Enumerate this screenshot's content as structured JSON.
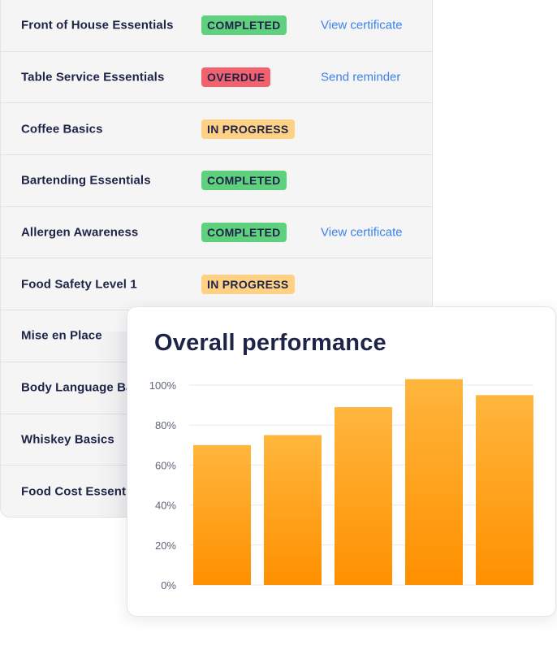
{
  "courses": [
    {
      "name": "Front of House Essentials",
      "status": "COMPLETED",
      "status_type": "completed",
      "action": "View certificate"
    },
    {
      "name": "Table Service Essentials",
      "status": "OVERDUE",
      "status_type": "overdue",
      "action": "Send reminder"
    },
    {
      "name": "Coffee Basics",
      "status": "IN PROGRESS",
      "status_type": "in-progress",
      "action": ""
    },
    {
      "name": "Bartending Essentials",
      "status": "COMPLETED",
      "status_type": "completed",
      "action": ""
    },
    {
      "name": "Allergen Awareness",
      "status": "COMPLETED",
      "status_type": "completed",
      "action": "View certificate"
    },
    {
      "name": "Food Safety Level 1",
      "status": "IN PROGRESS",
      "status_type": "in-progress",
      "action": ""
    },
    {
      "name": "Mise en Place",
      "status": "",
      "status_type": "",
      "action": ""
    },
    {
      "name": "Body Language Ba",
      "status": "",
      "status_type": "",
      "action": ""
    },
    {
      "name": "Whiskey Basics",
      "status": "",
      "status_type": "",
      "action": ""
    },
    {
      "name": "Food Cost Essenti",
      "status": "",
      "status_type": "",
      "action": ""
    }
  ],
  "colors": {
    "completed": "#5fd17e",
    "overdue": "#f2626e",
    "in_progress": "#ffd184",
    "link": "#3d82e9",
    "text_dark": "#1e2447",
    "bar_top": "#ffb63d",
    "bar_bottom": "#ff9000"
  },
  "performance": {
    "title": "Overall performance"
  },
  "chart_data": {
    "type": "bar",
    "title": "Overall performance",
    "categories": [
      "",
      "",
      "",
      "",
      ""
    ],
    "values": [
      70,
      75,
      89,
      103,
      95
    ],
    "ylim": [
      0,
      100
    ],
    "y_ticks": [
      "0%",
      "20%",
      "40%",
      "60%",
      "80%",
      "100%"
    ],
    "y_tick_values": [
      0,
      20,
      40,
      60,
      80,
      100
    ],
    "grid": true,
    "xlabel": "",
    "ylabel": ""
  }
}
